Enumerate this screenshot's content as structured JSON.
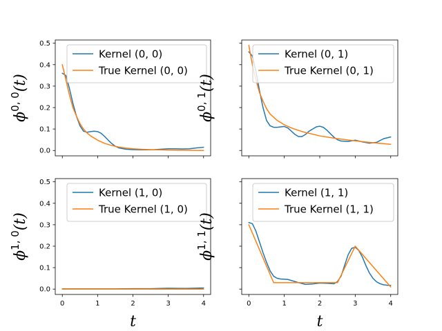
{
  "chart_data": [
    {
      "type": "line",
      "ylabel": {
        "base": "ϕ",
        "sup": "0, 0",
        "arg": "(t)"
      },
      "xlabel": "",
      "xlim": [
        -0.2,
        4.2
      ],
      "ylim": [
        -0.025,
        0.515
      ],
      "xticks": [
        0,
        1,
        2,
        3,
        4
      ],
      "yticks": [
        0.0,
        0.1,
        0.2,
        0.3,
        0.4,
        0.5
      ],
      "show_xticklabels": false,
      "show_yticklabels": true,
      "legend": "top-right",
      "series": [
        {
          "name": "Kernel (0, 0)",
          "color": "#1f77b4",
          "x": [
            0,
            0.1,
            0.2,
            0.3,
            0.4,
            0.5,
            0.6,
            0.7,
            0.8,
            0.9,
            1.0,
            1.1,
            1.2,
            1.3,
            1.4,
            1.5,
            1.6,
            1.8,
            2.0,
            2.2,
            2.4,
            2.6,
            2.8,
            3.0,
            3.2,
            3.4,
            3.6,
            3.8,
            4.0
          ],
          "y": [
            0.36,
            0.35,
            0.29,
            0.22,
            0.16,
            0.115,
            0.09,
            0.085,
            0.088,
            0.09,
            0.088,
            0.08,
            0.065,
            0.048,
            0.032,
            0.02,
            0.012,
            0.006,
            0.004,
            0.003,
            0.003,
            0.004,
            0.006,
            0.008,
            0.008,
            0.007,
            0.008,
            0.012,
            0.015
          ]
        },
        {
          "name": "True Kernel (0, 0)",
          "color": "#ff7f0e",
          "x": [
            0,
            0.1,
            0.2,
            0.3,
            0.4,
            0.5,
            0.6,
            0.7,
            0.8,
            1.0,
            1.2,
            1.4,
            1.6,
            1.8,
            2.0,
            2.2,
            2.5,
            3.0,
            3.5,
            4.0
          ],
          "y": [
            0.4,
            0.33,
            0.26,
            0.2,
            0.16,
            0.125,
            0.1,
            0.082,
            0.068,
            0.048,
            0.033,
            0.023,
            0.016,
            0.011,
            0.008,
            0.006,
            0.004,
            0.002,
            0.001,
            0.0
          ]
        }
      ]
    },
    {
      "type": "line",
      "ylabel": {
        "base": "ϕ",
        "sup": "0, 1",
        "arg": "(t)"
      },
      "xlabel": "",
      "xlim": [
        -0.2,
        4.2
      ],
      "ylim": [
        -0.025,
        0.515
      ],
      "xticks": [
        0,
        1,
        2,
        3,
        4
      ],
      "yticks": [
        0.0,
        0.1,
        0.2,
        0.3,
        0.4,
        0.5
      ],
      "show_xticklabels": false,
      "show_yticklabels": false,
      "legend": "top-right",
      "series": [
        {
          "name": "Kernel (0, 1)",
          "color": "#1f77b4",
          "x": [
            0,
            0.1,
            0.2,
            0.3,
            0.4,
            0.5,
            0.6,
            0.7,
            0.8,
            0.9,
            1.0,
            1.1,
            1.2,
            1.3,
            1.4,
            1.5,
            1.6,
            1.7,
            1.8,
            1.9,
            2.0,
            2.1,
            2.2,
            2.3,
            2.4,
            2.5,
            2.6,
            2.8,
            3.0,
            3.2,
            3.4,
            3.6,
            3.8,
            4.0
          ],
          "y": [
            0.46,
            0.44,
            0.37,
            0.28,
            0.2,
            0.14,
            0.115,
            0.108,
            0.108,
            0.11,
            0.112,
            0.105,
            0.09,
            0.075,
            0.065,
            0.065,
            0.075,
            0.09,
            0.1,
            0.11,
            0.113,
            0.108,
            0.095,
            0.078,
            0.062,
            0.05,
            0.044,
            0.042,
            0.048,
            0.04,
            0.034,
            0.038,
            0.055,
            0.063
          ]
        },
        {
          "name": "True Kernel (0, 1)",
          "color": "#ff7f0e",
          "x": [
            0,
            0.1,
            0.2,
            0.3,
            0.4,
            0.5,
            0.6,
            0.8,
            1.0,
            1.2,
            1.5,
            2.0,
            2.5,
            3.0,
            3.5,
            4.0
          ],
          "y": [
            0.49,
            0.4,
            0.33,
            0.27,
            0.23,
            0.195,
            0.17,
            0.14,
            0.12,
            0.105,
            0.088,
            0.068,
            0.055,
            0.045,
            0.036,
            0.029
          ]
        }
      ]
    },
    {
      "type": "line",
      "ylabel": {
        "base": "ϕ",
        "sup": "1, 0",
        "arg": "(t)"
      },
      "xlabel": "t",
      "xlim": [
        -0.2,
        4.2
      ],
      "ylim": [
        -0.025,
        0.515
      ],
      "xticks": [
        0,
        1,
        2,
        3,
        4
      ],
      "yticks": [
        0.0,
        0.1,
        0.2,
        0.3,
        0.4,
        0.5
      ],
      "show_xticklabels": true,
      "show_yticklabels": true,
      "legend": "top-right",
      "series": [
        {
          "name": "Kernel (1, 0)",
          "color": "#1f77b4",
          "x": [
            0,
            0.5,
            1.0,
            1.5,
            2.0,
            2.5,
            3.0,
            3.5,
            4.0
          ],
          "y": [
            0.001,
            0.001,
            0.001,
            0.001,
            0.002,
            0.002,
            0.004,
            0.003,
            0.005
          ]
        },
        {
          "name": "True Kernel (1, 0)",
          "color": "#ff7f0e",
          "x": [
            0,
            1.0,
            2.0,
            3.0,
            4.0
          ],
          "y": [
            0.0,
            0.0,
            0.0,
            0.0,
            0.0
          ]
        }
      ]
    },
    {
      "type": "line",
      "ylabel": {
        "base": "ϕ",
        "sup": "1, 1",
        "arg": "(t)"
      },
      "xlabel": "t",
      "xlim": [
        -0.2,
        4.2
      ],
      "ylim": [
        -0.025,
        0.515
      ],
      "xticks": [
        0,
        1,
        2,
        3,
        4
      ],
      "yticks": [
        0.0,
        0.1,
        0.2,
        0.3,
        0.4,
        0.5
      ],
      "show_xticklabels": true,
      "show_yticklabels": false,
      "legend": "top-right",
      "series": [
        {
          "name": "Kernel (1, 1)",
          "color": "#1f77b4",
          "x": [
            0,
            0.1,
            0.2,
            0.3,
            0.4,
            0.5,
            0.6,
            0.7,
            0.8,
            0.9,
            1.0,
            1.1,
            1.2,
            1.4,
            1.6,
            1.8,
            2.0,
            2.2,
            2.4,
            2.5,
            2.6,
            2.7,
            2.8,
            2.9,
            3.0,
            3.1,
            3.2,
            3.3,
            3.4,
            3.5,
            3.6,
            3.7,
            3.8,
            3.9,
            4.0
          ],
          "y": [
            0.31,
            0.305,
            0.27,
            0.22,
            0.17,
            0.125,
            0.085,
            0.06,
            0.05,
            0.047,
            0.046,
            0.045,
            0.04,
            0.03,
            0.022,
            0.024,
            0.028,
            0.027,
            0.025,
            0.035,
            0.06,
            0.11,
            0.16,
            0.19,
            0.195,
            0.18,
            0.15,
            0.11,
            0.075,
            0.05,
            0.034,
            0.025,
            0.02,
            0.018,
            0.017
          ]
        },
        {
          "name": "True Kernel (1, 1)",
          "color": "#ff7f0e",
          "x": [
            0,
            0.7,
            2.5,
            3.0,
            4.0
          ],
          "y": [
            0.3,
            0.03,
            0.03,
            0.2,
            0.01
          ]
        }
      ]
    }
  ]
}
